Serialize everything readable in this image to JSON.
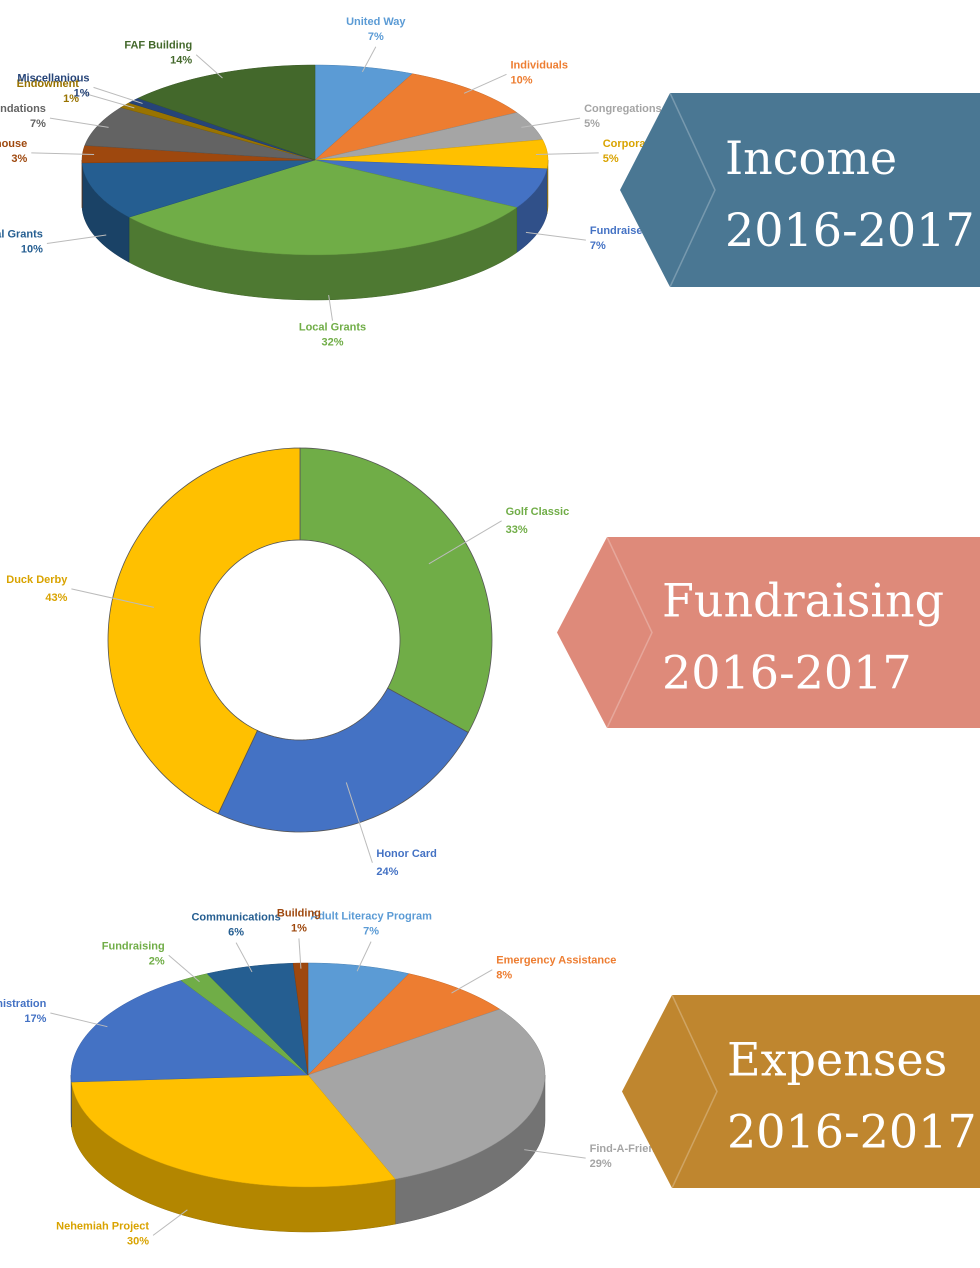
{
  "chart_data": [
    {
      "type": "pie",
      "title": "Income",
      "subtitle": "2016-2017",
      "categories": [
        "United Way",
        "Individuals",
        "Congregations",
        "Corporations",
        "Fundraisers",
        "Local Grants",
        "Federal Grants",
        "Re-Store Warehouse",
        "Foundations",
        "Endowment",
        "Miscellanious",
        "FAF Building"
      ],
      "values": [
        7,
        10,
        5,
        5,
        7,
        32,
        10,
        3,
        7,
        1,
        1,
        14
      ],
      "value_labels": [
        "7%",
        "10%",
        "5%",
        "5%",
        "7%",
        "32%",
        "10%",
        "3%",
        "7%",
        "1%",
        "1%",
        "14%"
      ],
      "colors": [
        "#5b9bd5",
        "#ed7d31",
        "#a5a5a5",
        "#ffc000",
        "#4472c4",
        "#70ad47",
        "#255e91",
        "#9e480e",
        "#636363",
        "#997300",
        "#264478",
        "#43682b"
      ],
      "banner_color": "#4a7793"
    },
    {
      "type": "donut",
      "title": "Fundraising",
      "subtitle": "2016-2017",
      "categories": [
        "Golf Classic",
        "Honor Card",
        "Duck Derby"
      ],
      "values": [
        33,
        24,
        43
      ],
      "value_labels": [
        "33%",
        "24%",
        "43%"
      ],
      "colors": [
        "#70ad47",
        "#4472c4",
        "#ffc000"
      ],
      "banner_color": "#de8a7a"
    },
    {
      "type": "pie",
      "title": "Expenses",
      "subtitle": "2016-2017",
      "categories": [
        "Adult Literacy Program",
        "Emergency Assistance",
        "Find-A-Friend",
        "Nehemiah Project",
        "Administration",
        "Fundraising",
        "Communications",
        "Building"
      ],
      "values": [
        7,
        8,
        29,
        30,
        17,
        2,
        6,
        1
      ],
      "value_labels": [
        "7%",
        "8%",
        "29%",
        "30%",
        "17%",
        "2%",
        "6%",
        "1%"
      ],
      "colors": [
        "#5b9bd5",
        "#ed7d31",
        "#a5a5a5",
        "#ffc000",
        "#4472c4",
        "#70ad47",
        "#255e91",
        "#9e480e"
      ],
      "banner_color": "#bf862f"
    }
  ]
}
